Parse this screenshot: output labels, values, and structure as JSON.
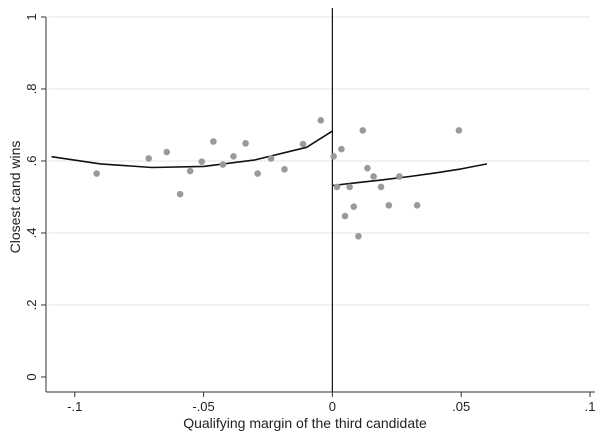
{
  "chart_data": {
    "type": "scatter",
    "xlabel": "Qualifying margin of the third candidate",
    "ylabel": "Closest cand wins",
    "xlim": [
      -0.11,
      0.1
    ],
    "ylim": [
      0,
      1
    ],
    "xticks": [
      {
        "value": -0.1,
        "label": "-.1"
      },
      {
        "value": -0.05,
        "label": "-.05"
      },
      {
        "value": 0,
        "label": "0"
      },
      {
        "value": 0.05,
        "label": ".05"
      },
      {
        "value": 0.1,
        "label": ".1"
      }
    ],
    "yticks": [
      {
        "value": 0,
        "label": "0"
      },
      {
        "value": 0.2,
        "label": ".2"
      },
      {
        "value": 0.4,
        "label": ".4"
      },
      {
        "value": 0.6,
        "label": ".6"
      },
      {
        "value": 0.8,
        "label": ".8"
      },
      {
        "value": 1,
        "label": "1"
      }
    ],
    "grid": "horizontal",
    "cutoff": 0,
    "colors": {
      "points": "#9a9a9a",
      "fit": "#111111",
      "grid": "#e6e6e6",
      "axis": "#333333"
    },
    "points": [
      {
        "x": -0.0915,
        "y": 0.565
      },
      {
        "x": -0.0713,
        "y": 0.607
      },
      {
        "x": -0.0643,
        "y": 0.625
      },
      {
        "x": -0.0591,
        "y": 0.508
      },
      {
        "x": -0.0552,
        "y": 0.572
      },
      {
        "x": -0.0507,
        "y": 0.598
      },
      {
        "x": -0.0462,
        "y": 0.654
      },
      {
        "x": -0.0425,
        "y": 0.59
      },
      {
        "x": -0.0384,
        "y": 0.613
      },
      {
        "x": -0.0337,
        "y": 0.649
      },
      {
        "x": -0.029,
        "y": 0.565
      },
      {
        "x": -0.0238,
        "y": 0.607
      },
      {
        "x": -0.0186,
        "y": 0.577
      },
      {
        "x": -0.0114,
        "y": 0.647
      },
      {
        "x": -0.0045,
        "y": 0.713
      },
      {
        "x": 0.0005,
        "y": 0.613
      },
      {
        "x": 0.0018,
        "y": 0.528
      },
      {
        "x": 0.0035,
        "y": 0.633
      },
      {
        "x": 0.0049,
        "y": 0.447
      },
      {
        "x": 0.0067,
        "y": 0.528
      },
      {
        "x": 0.0083,
        "y": 0.473
      },
      {
        "x": 0.0101,
        "y": 0.391
      },
      {
        "x": 0.0118,
        "y": 0.685
      },
      {
        "x": 0.0136,
        "y": 0.58
      },
      {
        "x": 0.016,
        "y": 0.557
      },
      {
        "x": 0.0189,
        "y": 0.528
      },
      {
        "x": 0.0219,
        "y": 0.477
      },
      {
        "x": 0.026,
        "y": 0.557
      },
      {
        "x": 0.0329,
        "y": 0.477
      },
      {
        "x": 0.0491,
        "y": 0.685
      }
    ],
    "fit_left": [
      {
        "x": -0.109,
        "y": 0.612
      },
      {
        "x": -0.09,
        "y": 0.592
      },
      {
        "x": -0.07,
        "y": 0.582
      },
      {
        "x": -0.05,
        "y": 0.585
      },
      {
        "x": -0.03,
        "y": 0.603
      },
      {
        "x": -0.01,
        "y": 0.638
      },
      {
        "x": 0,
        "y": 0.683
      }
    ],
    "fit_right": [
      {
        "x": 0,
        "y": 0.532
      },
      {
        "x": 0.01,
        "y": 0.54
      },
      {
        "x": 0.02,
        "y": 0.548
      },
      {
        "x": 0.03,
        "y": 0.557
      },
      {
        "x": 0.04,
        "y": 0.567
      },
      {
        "x": 0.05,
        "y": 0.578
      },
      {
        "x": 0.06,
        "y": 0.592
      }
    ]
  }
}
